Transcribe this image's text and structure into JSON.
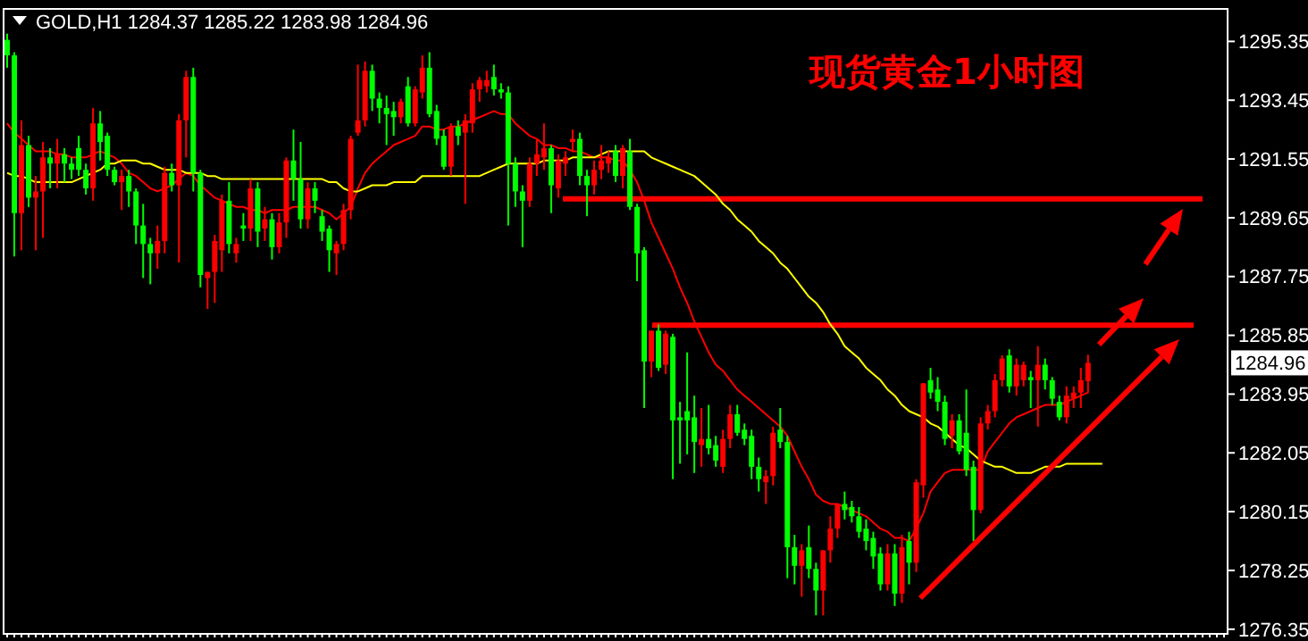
{
  "chart_data": {
    "type": "candlestick",
    "title": "现货黄金1小时图",
    "subtitle": "GOLD,H1  1284.37 1285.22 1283.98 1284.96",
    "categories": [
      null,
      null,
      null,
      null,
      null,
      null,
      null,
      null,
      null,
      null,
      null,
      null,
      null,
      null,
      null,
      null,
      null,
      null,
      null,
      null,
      null,
      null,
      null,
      null,
      null,
      null,
      null,
      null,
      null,
      null,
      null,
      null,
      null,
      null,
      null,
      null,
      null,
      null,
      null,
      null,
      null,
      null,
      null,
      null,
      null,
      null,
      null,
      null,
      null,
      null,
      null,
      null,
      null,
      null,
      null,
      null,
      null,
      null,
      null,
      null,
      null,
      null,
      null,
      null,
      null,
      null,
      null,
      null,
      null,
      null,
      null,
      null,
      null,
      null,
      null,
      null,
      null,
      null,
      null,
      null,
      null,
      null,
      null,
      null,
      null,
      null,
      null,
      null,
      null,
      null,
      null,
      null,
      null,
      null,
      null,
      null,
      null,
      null,
      null,
      null,
      null,
      null,
      null,
      null,
      null,
      null,
      null,
      null,
      null,
      null,
      null,
      null,
      null,
      null,
      null,
      null,
      null,
      null,
      null,
      null,
      null,
      null,
      null,
      null,
      null,
      null,
      null,
      null,
      null,
      null,
      null,
      null,
      null,
      null,
      null,
      null,
      null,
      null,
      null,
      null,
      null,
      null,
      null,
      null,
      null,
      null,
      null,
      null,
      null,
      null,
      null,
      null,
      null,
      null,
      null,
      null,
      null,
      null,
      null,
      null,
      null,
      null,
      null,
      null,
      null,
      null,
      null,
      null,
      null,
      null,
      null
    ],
    "colors": [
      "#00ff00",
      "#00ff00",
      "#ff0000",
      "#00ff00",
      "#ff0000",
      "#ff0000",
      "#00ff00",
      "#ff0000",
      "#00ff00",
      "#00ff00",
      "#00ff00",
      "#00ff00",
      "#ff0000",
      "#00ff00",
      "#00ff00",
      "#00ff00",
      "#ff0000",
      "#00ff00",
      "#00ff00",
      "#00ff00",
      "#00ff00",
      "#ff0000",
      "#ff0000",
      "#00ff00",
      "#ff0000",
      "#ff0000",
      "#00ff00",
      "#00ff00",
      "#ff0000",
      "#ff0000",
      "#ff0000",
      "#00ff00",
      "#ff0000",
      "#00ff00",
      "#ff0000",
      "#00ff00",
      "#ff0000",
      "#00ff00",
      "#ff0000",
      "#ff0000",
      "#00ff00",
      "#00ff00",
      "#ff0000",
      "#00ff00",
      "#00ff00",
      "#00ff00",
      "#ff0000",
      "#ff0000",
      "#ff0000",
      "#ff0000",
      "#ff0000",
      "#00ff00",
      "#00ff00",
      "#00ff00",
      "#00ff00",
      "#ff0000",
      "#00ff00",
      "#ff0000",
      "#ff0000",
      "#00ff00",
      "#00ff00",
      "#00ff00",
      "#ff0000",
      "#00ff00",
      "#ff0000",
      "#ff0000",
      "#ff0000",
      "#ff0000",
      "#00ff00",
      "#00ff00",
      "#00ff00",
      "#00ff00",
      "#00ff00",
      "#ff0000",
      "#ff0000",
      "#ff0000",
      "#00ff00",
      "#ff0000",
      "#ff0000",
      "#ff0000",
      "#00ff00",
      "#00ff00",
      "#ff0000",
      "#ff0000",
      "#ff0000",
      "#00ff00",
      "#ff0000",
      "#00ff00",
      "#00ff00",
      "#00ff00",
      "#ff0000",
      "#00ff00",
      "#ff0000",
      "#00ff00",
      "#00ff00",
      "#00ff00",
      "#00ff00",
      "#ff0000",
      "#00ff00",
      "#00ff00",
      "#ff0000",
      "#ff0000",
      "#00ff00",
      "#00ff00",
      "#00ff00",
      "#00ff00",
      "#ff0000",
      "#ff0000",
      "#00ff00",
      "#00ff00",
      "#00ff00",
      "#ff0000",
      "#00ff00",
      "#00ff00",
      "#ff0000",
      "#ff0000",
      "#ff0000",
      "#00ff00",
      "#00ff00",
      "#00ff00",
      "#00ff00",
      "#00ff00",
      "#00ff00",
      "#ff0000",
      "#00ff00",
      "#ff0000",
      "#00ff00",
      "#ff0000",
      "#ff0000",
      "#00ff00",
      "#00ff00",
      "#00ff00",
      "#ff0000",
      "#00ff00",
      "#00ff00",
      "#00ff00",
      "#ff0000",
      "#ff0000",
      "#ff0000",
      "#ff0000",
      "#00ff00",
      "#ff0000",
      "#ff0000",
      "#00ff00",
      "#ff0000",
      "#00ff00",
      "#00ff00",
      "#00ff00",
      "#ff0000",
      "#ff0000",
      "#ff0000",
      "#ff0000",
      null,
      null,
      null,
      null,
      null,
      null,
      null,
      null,
      null,
      null,
      null,
      null,
      null,
      null,
      null,
      null,
      null,
      null,
      null
    ],
    "ohlc": [
      [
        1295.4,
        1295.6,
        1294.5,
        1294.9
      ],
      [
        1294.9,
        1295.0,
        1288.4,
        1289.8
      ],
      [
        1289.8,
        1292.8,
        1288.6,
        1292.0
      ],
      [
        1292.0,
        1292.3,
        1290.0,
        1290.3
      ],
      [
        1290.3,
        1291.0,
        1288.6,
        1290.5
      ],
      [
        1290.5,
        1292.1,
        1289.0,
        1291.6
      ],
      [
        1291.6,
        1291.9,
        1290.6,
        1291.4
      ],
      [
        1291.4,
        1292.2,
        1290.6,
        1291.7
      ],
      [
        1291.7,
        1291.9,
        1290.8,
        1291.4
      ],
      [
        1291.4,
        1291.6,
        1290.9,
        1291.2
      ],
      [
        1291.9,
        1292.3,
        1291.0,
        1291.2
      ],
      [
        1291.2,
        1291.4,
        1290.4,
        1290.6
      ],
      [
        1290.6,
        1293.2,
        1290.2,
        1292.7
      ],
      [
        1292.7,
        1293.1,
        1291.5,
        1292.1
      ],
      [
        1292.3,
        1292.4,
        1291.0,
        1291.2
      ],
      [
        1291.2,
        1291.3,
        1290.7,
        1290.8
      ],
      [
        1290.8,
        1291.2,
        1289.9,
        1291.0
      ],
      [
        1291.0,
        1291.2,
        1290.0,
        1290.5
      ],
      [
        1290.5,
        1290.6,
        1288.8,
        1289.4
      ],
      [
        1289.4,
        1290.1,
        1287.7,
        1288.8
      ],
      [
        1288.8,
        1289.0,
        1287.5,
        1288.5
      ],
      [
        1288.5,
        1289.4,
        1288.0,
        1288.9
      ],
      [
        1288.9,
        1291.3,
        1288.5,
        1291.1
      ],
      [
        1291.1,
        1291.4,
        1290.5,
        1290.7
      ],
      [
        1290.7,
        1293.0,
        1288.2,
        1292.8
      ],
      [
        1292.8,
        1294.4,
        1291.6,
        1294.2
      ],
      [
        1294.2,
        1294.5,
        1290.5,
        1291.1
      ],
      [
        1291.1,
        1291.2,
        1287.4,
        1287.8
      ],
      [
        1287.7,
        1287.9,
        1286.7,
        1287.9
      ],
      [
        1287.9,
        1289.1,
        1286.9,
        1288.9
      ],
      [
        1288.6,
        1290.4,
        1287.9,
        1290.2
      ],
      [
        1290.2,
        1290.8,
        1288.5,
        1288.8
      ],
      [
        1288.5,
        1289.0,
        1288.2,
        1288.8
      ],
      [
        1289.4,
        1289.8,
        1288.9,
        1289.3
      ],
      [
        1289.3,
        1290.9,
        1288.9,
        1290.6
      ],
      [
        1290.6,
        1290.8,
        1288.7,
        1289.2
      ],
      [
        1289.3,
        1290.0,
        1288.9,
        1289.6
      ],
      [
        1289.6,
        1289.8,
        1288.3,
        1288.7
      ],
      [
        1288.7,
        1289.8,
        1288.5,
        1289.5
      ],
      [
        1289.5,
        1291.6,
        1289.0,
        1291.5
      ],
      [
        1291.5,
        1292.5,
        1290.2,
        1290.9
      ],
      [
        1290.9,
        1292.1,
        1289.3,
        1289.6
      ],
      [
        1289.6,
        1290.8,
        1289.3,
        1290.6
      ],
      [
        1290.6,
        1290.8,
        1289.8,
        1290.2
      ],
      [
        1289.7,
        1289.9,
        1288.9,
        1289.2
      ],
      [
        1289.3,
        1289.4,
        1287.9,
        1288.6
      ],
      [
        1288.5,
        1288.9,
        1287.8,
        1288.8
      ],
      [
        1288.8,
        1290.1,
        1288.6,
        1289.9
      ],
      [
        1289.9,
        1292.3,
        1289.6,
        1292.2
      ],
      [
        1292.4,
        1294.6,
        1292.3,
        1292.8
      ],
      [
        1292.8,
        1294.7,
        1292.6,
        1294.4
      ],
      [
        1294.4,
        1294.6,
        1293.1,
        1293.5
      ],
      [
        1293.5,
        1293.7,
        1292.7,
        1293.2
      ],
      [
        1293.2,
        1293.6,
        1292.0,
        1293.0
      ],
      [
        1293.1,
        1293.4,
        1292.3,
        1292.9
      ],
      [
        1292.9,
        1293.5,
        1292.7,
        1293.4
      ],
      [
        1293.9,
        1294.2,
        1292.6,
        1292.7
      ],
      [
        1292.7,
        1293.9,
        1292.6,
        1293.8
      ],
      [
        1293.7,
        1294.9,
        1293.5,
        1294.5
      ],
      [
        1294.5,
        1295.0,
        1292.9,
        1293.0
      ],
      [
        1293.1,
        1293.3,
        1292.0,
        1292.2
      ],
      [
        1292.3,
        1292.5,
        1291.2,
        1291.3
      ],
      [
        1291.3,
        1292.7,
        1291.0,
        1292.6
      ],
      [
        1292.6,
        1292.8,
        1292.0,
        1292.3
      ],
      [
        1292.4,
        1293.0,
        1290.1,
        1292.8
      ],
      [
        1292.7,
        1294.0,
        1292.4,
        1293.8
      ],
      [
        1293.8,
        1294.2,
        1293.4,
        1294.1
      ],
      [
        1293.9,
        1294.4,
        1293.7,
        1294.1
      ],
      [
        1294.2,
        1294.6,
        1293.6,
        1293.8
      ],
      [
        1293.8,
        1294.0,
        1293.5,
        1293.7
      ],
      [
        1293.7,
        1293.9,
        1289.4,
        1291.4
      ],
      [
        1291.4,
        1291.6,
        1290.0,
        1290.5
      ],
      [
        1290.5,
        1290.7,
        1288.7,
        1290.2
      ],
      [
        1290.2,
        1291.6,
        1290.0,
        1291.4
      ],
      [
        1291.4,
        1292.2,
        1291.0,
        1291.7
      ],
      [
        1291.6,
        1292.7,
        1291.2,
        1291.9
      ],
      [
        1291.9,
        1292.0,
        1289.8,
        1290.7
      ],
      [
        1290.6,
        1291.7,
        1290.3,
        1291.5
      ],
      [
        1291.4,
        1291.8,
        1291.0,
        1291.6
      ],
      [
        1292.1,
        1292.5,
        1291.8,
        1292.2
      ],
      [
        1292.2,
        1292.4,
        1290.7,
        1291.0
      ],
      [
        1291.0,
        1291.2,
        1289.7,
        1290.7
      ],
      [
        1290.7,
        1291.5,
        1290.4,
        1291.2
      ],
      [
        1291.2,
        1292.0,
        1290.9,
        1291.5
      ],
      [
        1291.4,
        1291.8,
        1291.1,
        1291.6
      ],
      [
        1291.8,
        1292.0,
        1290.8,
        1291.0
      ],
      [
        1291.0,
        1292.0,
        1290.6,
        1291.9
      ],
      [
        1291.8,
        1292.2,
        1289.9,
        1290.0
      ],
      [
        1290.0,
        1290.1,
        1287.6,
        1288.5
      ],
      [
        1288.6,
        1288.7,
        1283.5,
        1285.0
      ],
      [
        1285.0,
        1286.0,
        1284.5,
        1286.0
      ],
      [
        1286.0,
        1286.2,
        1284.7,
        1284.8
      ],
      [
        1284.9,
        1286.0,
        1284.6,
        1285.9
      ],
      [
        1285.8,
        1285.9,
        1281.2,
        1283.1
      ],
      [
        1283.2,
        1283.7,
        1281.7,
        1283.1
      ],
      [
        1283.4,
        1285.3,
        1282.0,
        1283.1
      ],
      [
        1283.2,
        1283.9,
        1281.4,
        1282.4
      ],
      [
        1282.3,
        1283.5,
        1281.6,
        1282.5
      ],
      [
        1282.5,
        1283.6,
        1282.0,
        1282.2
      ],
      [
        1282.3,
        1282.6,
        1281.6,
        1281.8
      ],
      [
        1281.6,
        1282.8,
        1281.4,
        1282.5
      ],
      [
        1282.5,
        1283.6,
        1282.2,
        1283.3
      ],
      [
        1283.3,
        1283.6,
        1282.6,
        1282.7
      ],
      [
        1282.8,
        1283.0,
        1282.3,
        1282.5
      ],
      [
        1282.6,
        1282.8,
        1281.2,
        1281.6
      ],
      [
        1281.6,
        1281.9,
        1280.8,
        1281.2
      ],
      [
        1281.1,
        1281.5,
        1280.4,
        1281.3
      ],
      [
        1281.3,
        1282.9,
        1281.0,
        1282.7
      ],
      [
        1282.8,
        1283.5,
        1282.2,
        1282.4
      ],
      [
        1282.4,
        1282.6,
        1278.0,
        1279.0
      ],
      [
        1279.0,
        1279.4,
        1277.8,
        1278.4
      ],
      [
        1278.4,
        1279.1,
        1277.4,
        1278.9
      ],
      [
        1279.0,
        1279.7,
        1278.0,
        1278.3
      ],
      [
        1278.3,
        1278.5,
        1276.8,
        1277.6
      ],
      [
        1277.6,
        1278.9,
        1276.8,
        1278.9
      ],
      [
        1278.9,
        1280.0,
        1278.5,
        1279.6
      ],
      [
        1279.6,
        1280.4,
        1279.3,
        1280.4
      ],
      [
        1280.4,
        1280.8,
        1279.9,
        1280.2
      ],
      [
        1280.3,
        1280.5,
        1279.8,
        1280.0
      ],
      [
        1280.0,
        1280.3,
        1279.3,
        1279.5
      ],
      [
        1279.6,
        1279.9,
        1278.9,
        1279.2
      ],
      [
        1279.3,
        1279.5,
        1278.3,
        1278.7
      ],
      [
        1278.8,
        1279.0,
        1277.6,
        1277.8
      ],
      [
        1277.8,
        1279.1,
        1277.6,
        1278.8
      ],
      [
        1278.8,
        1279.1,
        1277.1,
        1277.5
      ],
      [
        1277.5,
        1279.4,
        1277.2,
        1279.0
      ],
      [
        1279.2,
        1279.5,
        1277.8,
        1278.5
      ],
      [
        1278.5,
        1281.2,
        1278.2,
        1281.1
      ],
      [
        1281.0,
        1284.3,
        1280.6,
        1284.3
      ],
      [
        1284.4,
        1284.8,
        1283.8,
        1284.0
      ],
      [
        1284.1,
        1284.5,
        1283.4,
        1283.7
      ],
      [
        1283.7,
        1283.9,
        1282.3,
        1282.5
      ],
      [
        1282.6,
        1283.3,
        1282.2,
        1283.1
      ],
      [
        1283.1,
        1283.3,
        1282.0,
        1282.1
      ],
      [
        1282.7,
        1284.1,
        1281.3,
        1281.5
      ],
      [
        1281.6,
        1281.8,
        1279.2,
        1280.2
      ],
      [
        1280.2,
        1283.2,
        1280.1,
        1283.0
      ],
      [
        1283.0,
        1283.6,
        1282.8,
        1283.4
      ],
      [
        1283.4,
        1284.6,
        1283.2,
        1284.4
      ],
      [
        1284.4,
        1285.2,
        1284.2,
        1285.1
      ],
      [
        1285.2,
        1285.4,
        1284.0,
        1284.2
      ],
      [
        1284.2,
        1285.1,
        1283.9,
        1284.9
      ],
      [
        1284.4,
        1285.0,
        1284.2,
        1284.9
      ],
      [
        1284.5,
        1284.7,
        1283.5,
        1284.4
      ],
      [
        1284.4,
        1285.5,
        1282.9,
        1284.9
      ],
      [
        1284.9,
        1285.1,
        1284.1,
        1284.4
      ],
      [
        1284.4,
        1284.5,
        1283.6,
        1283.8
      ],
      [
        1283.7,
        1283.9,
        1283.1,
        1283.2
      ],
      [
        1283.2,
        1284.2,
        1283.0,
        1283.9
      ],
      [
        1283.8,
        1284.2,
        1283.5,
        1284.0
      ],
      [
        1284.0,
        1284.8,
        1283.5,
        1284.4
      ],
      [
        1284.37,
        1285.22,
        1283.98,
        1284.96
      ],
      null,
      null,
      null,
      null,
      null,
      null,
      null,
      null,
      null,
      null,
      null,
      null,
      null,
      null,
      null,
      null,
      null,
      null,
      null
    ],
    "series": [
      {
        "type": "line",
        "color": "#ff0000",
        "values": [
          1292.7,
          1292.4,
          1292.2,
          1292.0,
          1291.8,
          1291.8,
          1291.8,
          1291.7,
          1291.7,
          1291.6,
          1291.6,
          1291.6,
          1291.7,
          1291.8,
          1291.7,
          1291.6,
          1291.4,
          1291.1,
          1291.0,
          1290.8,
          1290.6,
          1290.5,
          1290.6,
          1290.7,
          1290.9,
          1291.1,
          1291.0,
          1290.7,
          1290.5,
          1290.3,
          1290.2,
          1290.1,
          1290.0,
          1290.0,
          1289.9,
          1289.9,
          1289.8,
          1289.9,
          1289.9,
          1289.9,
          1290.0,
          1290.0,
          1290.0,
          1290.0,
          1289.9,
          1289.8,
          1289.6,
          1289.8,
          1290.0,
          1290.6,
          1291.1,
          1291.4,
          1291.6,
          1291.8,
          1292.0,
          1292.1,
          1292.2,
          1292.3,
          1292.6,
          1292.6,
          1292.5,
          1292.5,
          1292.6,
          1292.6,
          1292.7,
          1292.8,
          1292.9,
          1293.0,
          1293.1,
          1293.0,
          1293.0,
          1292.7,
          1292.5,
          1292.3,
          1292.2,
          1292.0,
          1292.0,
          1291.9,
          1291.9,
          1291.8,
          1291.8,
          1291.7,
          1291.6,
          1291.6,
          1291.6,
          1291.5,
          1291.5,
          1291.2,
          1290.8,
          1290.2,
          1289.5,
          1289.0,
          1288.5,
          1288.0,
          1287.4,
          1286.9,
          1286.3,
          1285.8,
          1285.3,
          1284.9,
          1284.7,
          1284.4,
          1284.1,
          1283.9,
          1283.7,
          1283.5,
          1283.3,
          1283.1,
          1282.9,
          1282.6,
          1282.1,
          1281.6,
          1281.2,
          1280.7,
          1280.5,
          1280.4,
          1280.4,
          1280.3,
          1280.2,
          1280.1,
          1280.0,
          1279.8,
          1279.6,
          1279.5,
          1279.3,
          1279.3,
          1279.2,
          1279.6,
          1280.1,
          1280.8,
          1281.1,
          1281.4,
          1281.5,
          1281.5,
          1281.5,
          1281.5,
          1281.5,
          1282.1,
          1282.4,
          1282.7,
          1283.0,
          1283.2,
          1283.3,
          1283.4,
          1283.5,
          1283.6,
          1283.6,
          1283.6,
          1283.7,
          1283.8,
          1283.9,
          1284.0,
          null,
          null,
          null,
          null,
          null,
          null,
          null,
          null,
          null,
          null,
          null,
          null,
          null,
          null,
          null,
          null,
          null,
          null,
          null
        ]
      },
      {
        "type": "line",
        "color": "#ffff00",
        "values": [
          1291.1,
          1291.0,
          1291.0,
          1290.9,
          1290.8,
          1290.8,
          1290.8,
          1290.8,
          1290.8,
          1290.8,
          1290.9,
          1291.0,
          1291.1,
          1291.2,
          1291.4,
          1291.4,
          1291.5,
          1291.5,
          1291.5,
          1291.4,
          1291.4,
          1291.3,
          1291.2,
          1291.2,
          1291.2,
          1291.1,
          1291.1,
          1291.1,
          1291.0,
          1291.0,
          1290.9,
          1290.9,
          1290.9,
          1290.9,
          1290.9,
          1290.9,
          1290.9,
          1290.9,
          1290.9,
          1290.9,
          1290.9,
          1290.9,
          1290.9,
          1290.9,
          1290.9,
          1290.8,
          1290.8,
          1290.6,
          1290.5,
          1290.5,
          1290.6,
          1290.7,
          1290.7,
          1290.7,
          1290.8,
          1290.8,
          1290.8,
          1290.8,
          1291.0,
          1291.0,
          1291.0,
          1291.0,
          1291.0,
          1291.0,
          1291.0,
          1291.0,
          1291.0,
          1291.1,
          1291.2,
          1291.3,
          1291.4,
          1291.4,
          1291.4,
          1291.4,
          1291.4,
          1291.5,
          1291.5,
          1291.5,
          1291.5,
          1291.6,
          1291.6,
          1291.6,
          1291.6,
          1291.7,
          1291.8,
          1291.8,
          1291.8,
          1291.8,
          1291.8,
          1291.8,
          1291.6,
          1291.5,
          1291.4,
          1291.3,
          1291.2,
          1291.1,
          1291.0,
          1290.8,
          1290.6,
          1290.4,
          1290.1,
          1289.9,
          1289.6,
          1289.4,
          1289.2,
          1288.9,
          1288.7,
          1288.5,
          1288.2,
          1288.0,
          1287.7,
          1287.4,
          1287.1,
          1286.9,
          1286.6,
          1286.2,
          1285.9,
          1285.5,
          1285.3,
          1285.1,
          1284.8,
          1284.6,
          1284.4,
          1284.1,
          1283.9,
          1283.6,
          1283.4,
          1283.3,
          1283.2,
          1283.0,
          1282.9,
          1282.7,
          1282.5,
          1282.3,
          1282.2,
          1282.0,
          1281.8,
          1281.7,
          1281.6,
          1281.6,
          1281.5,
          1281.4,
          1281.4,
          1281.4,
          1281.5,
          1281.6,
          1281.6,
          1281.6,
          1281.7,
          1281.7,
          1281.7,
          1281.7,
          1281.7,
          1281.7,
          null,
          null,
          null,
          null,
          null,
          null,
          null,
          null,
          null,
          null,
          null,
          null,
          null,
          null,
          null,
          null,
          null
        ]
      }
    ],
    "ylim": [
      1276.2,
      1296.4
    ],
    "yticks": [
      1276.35,
      1278.25,
      1280.15,
      1282.05,
      1283.95,
      1285.85,
      1287.75,
      1289.65,
      1291.55,
      1293.45,
      1295.35
    ],
    "tick_labels": "y",
    "ref_lines": [
      {
        "axis": "y",
        "value": 1290.26,
        "color": "#ff0000"
      },
      {
        "axis": "y",
        "value": 1286.18,
        "color": "#ff0000"
      }
    ],
    "annotations": [
      "1284.96"
    ]
  }
}
